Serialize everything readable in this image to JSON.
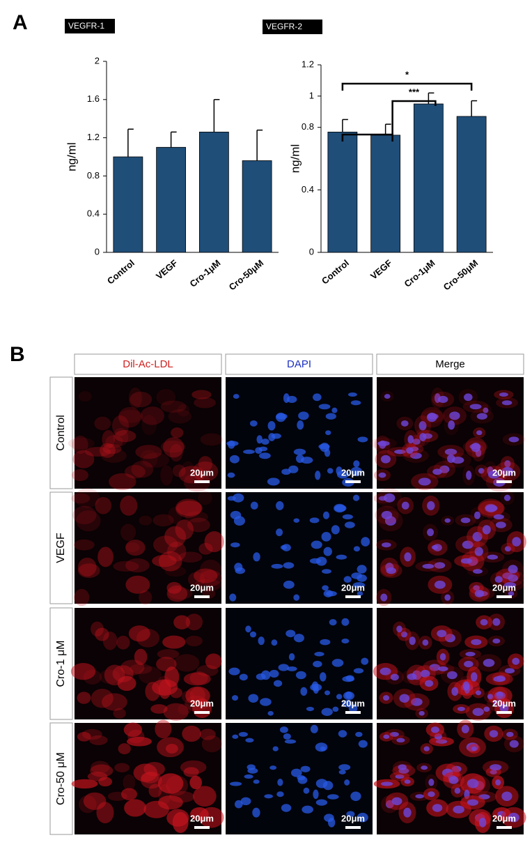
{
  "panels": {
    "a": "A",
    "b": "B"
  },
  "chart_data": [
    {
      "type": "bar",
      "title": "VEGFR-1",
      "y_label": "ng/ml",
      "categories": [
        "Control",
        "VEGF",
        "Cro-1μM",
        "Cro-50μM"
      ],
      "values": [
        1.0,
        1.1,
        1.26,
        0.96
      ],
      "errors": [
        0.29,
        0.16,
        0.34,
        0.32
      ],
      "color": "#1f4e79",
      "ylim": [
        0,
        2
      ],
      "yticks": [
        0,
        0.4,
        0.8,
        1.2,
        1.6,
        2
      ]
    },
    {
      "type": "bar",
      "title": "VEGFR-2",
      "y_label": "ng/ml",
      "categories": [
        "Control",
        "VEGF",
        "Cro-1μM",
        "Cro-50μM"
      ],
      "values": [
        0.77,
        0.75,
        0.95,
        0.87
      ],
      "errors": [
        0.08,
        0.07,
        0.07,
        0.1
      ],
      "color": "#1f4e79",
      "ylim": [
        0,
        1.2
      ],
      "yticks": [
        0,
        0.4,
        0.8,
        1,
        1.2
      ],
      "significance": [
        "*",
        "***"
      ]
    }
  ],
  "image_grid": {
    "columns": [
      "Dil-Ac-LDL",
      "DAPI",
      "Merge"
    ],
    "rows": [
      "Control",
      "VEGF",
      "Cro-1 μM",
      "Cro-50 μM"
    ],
    "scale_bar": "20μm"
  }
}
